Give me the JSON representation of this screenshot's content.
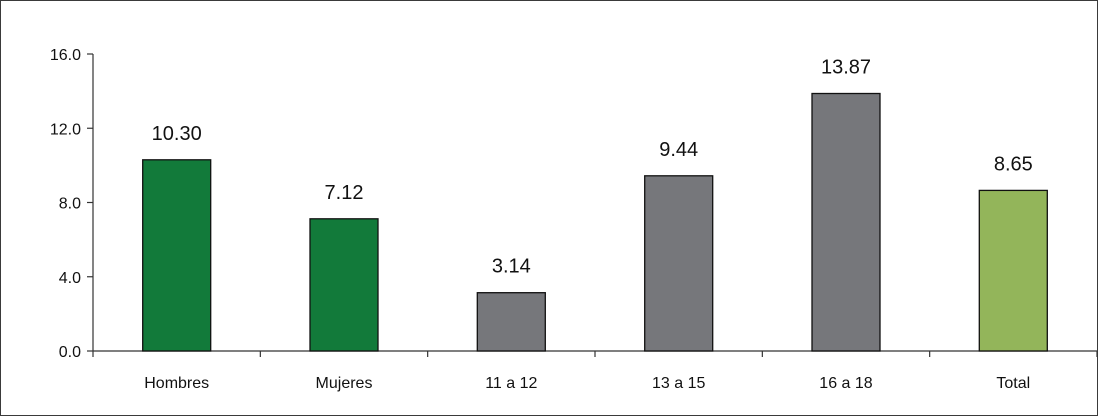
{
  "chart_data": {
    "type": "bar",
    "title": "",
    "xlabel": "",
    "ylabel": "",
    "categories": [
      "Hombres",
      "Mujeres",
      "11 a 12",
      "13 a 15",
      "16 a 18",
      "Total"
    ],
    "values": [
      10.3,
      7.12,
      3.14,
      9.44,
      13.87,
      8.65
    ],
    "value_labels": [
      "10.30",
      "7.12",
      "3.14",
      "9.44",
      "13.87",
      "8.65"
    ],
    "bar_colors": [
      "#127a3a",
      "#127a3a",
      "#76777b",
      "#76777b",
      "#76777b",
      "#93b55a"
    ],
    "ylim": [
      0,
      16
    ],
    "yticks": [
      0,
      4,
      8,
      12,
      16
    ],
    "ytick_labels": [
      "0.0",
      "4.0",
      "8.0",
      "12.0",
      "16.0"
    ],
    "grid": false,
    "legend": "none",
    "axis_color": "#333333",
    "bar_edge_color": "#111111"
  }
}
